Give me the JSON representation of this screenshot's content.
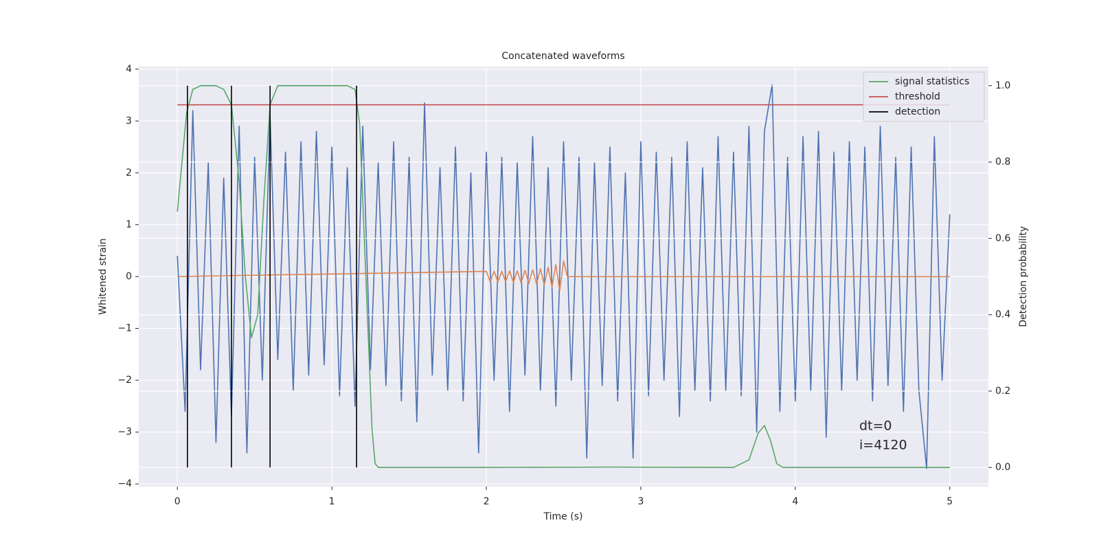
{
  "chart_data": {
    "type": "line",
    "title": "Concatenated waveforms",
    "xlabel": "Time (s)",
    "ylabel": "Whitened strain",
    "y2label": "Detection probability",
    "xlim": [
      -0.25,
      5.25
    ],
    "ylim": [
      -4.05,
      4.05
    ],
    "y2lim": [
      -0.05,
      1.05
    ],
    "xticks": [
      0,
      1,
      2,
      3,
      4,
      5
    ],
    "yticks": [
      {
        "value": -4,
        "label": "−4"
      },
      {
        "value": -3,
        "label": "−3"
      },
      {
        "value": -2,
        "label": "−2"
      },
      {
        "value": -1,
        "label": "−1"
      },
      0,
      1,
      2,
      3,
      4
    ],
    "y2ticks": [
      {
        "value": 0,
        "label": "0.0"
      },
      0.2,
      0.4,
      0.6,
      0.8,
      {
        "value": 1,
        "label": "1.0"
      }
    ],
    "grid": true,
    "legend": "upper right",
    "annotations": [
      "dt=0",
      "i=4120"
    ],
    "series": [
      {
        "color": "#4c72b0",
        "axis": "y",
        "x": [
          0,
          0.05,
          0.1,
          0.15,
          0.2,
          0.25,
          0.3,
          0.35,
          0.4,
          0.45,
          0.5,
          0.55,
          0.6,
          0.65,
          0.7,
          0.75,
          0.8,
          0.85,
          0.9,
          0.95,
          1,
          1.05,
          1.1,
          1.15,
          1.2,
          1.25,
          1.3,
          1.35,
          1.4,
          1.45,
          1.5,
          1.55,
          1.6,
          1.65,
          1.7,
          1.75,
          1.8,
          1.85,
          1.9,
          1.95,
          2,
          2.05,
          2.1,
          2.15,
          2.2,
          2.25,
          2.3,
          2.35,
          2.4,
          2.45,
          2.5,
          2.55,
          2.6,
          2.65,
          2.7,
          2.75,
          2.8,
          2.85,
          2.9,
          2.95,
          3,
          3.05,
          3.1,
          3.15,
          3.2,
          3.25,
          3.3,
          3.35,
          3.4,
          3.45,
          3.5,
          3.55,
          3.6,
          3.65,
          3.7,
          3.75,
          3.8,
          3.85,
          3.9,
          3.95,
          4,
          4.05,
          4.1,
          4.15,
          4.2,
          4.25,
          4.3,
          4.35,
          4.4,
          4.45,
          4.5,
          4.55,
          4.6,
          4.65,
          4.7,
          4.75,
          4.8,
          4.85,
          4.9,
          4.95,
          5
        ],
        "values": [
          0.4,
          -2.6,
          3.2,
          -1.8,
          2.2,
          -3.2,
          1.9,
          -2.7,
          2.9,
          -3.4,
          2.3,
          -2.0,
          3.1,
          -1.6,
          2.4,
          -2.2,
          2.6,
          -1.9,
          2.8,
          -1.7,
          2.5,
          -2.3,
          2.1,
          -2.5,
          2.9,
          -1.8,
          2.2,
          -2.1,
          2.6,
          -2.4,
          2.3,
          -2.8,
          3.35,
          -1.9,
          2.1,
          -2.2,
          2.5,
          -2.4,
          2.0,
          -3.4,
          2.4,
          -2.0,
          2.3,
          -2.6,
          2.2,
          -1.9,
          2.7,
          -2.2,
          2.1,
          -2.5,
          2.6,
          -2.0,
          2.3,
          -3.5,
          2.2,
          -2.1,
          2.5,
          -2.4,
          2.0,
          -3.5,
          2.6,
          -2.3,
          2.4,
          -2.0,
          2.3,
          -2.7,
          2.6,
          -2.2,
          2.1,
          -2.4,
          2.7,
          -2.2,
          2.4,
          -2.3,
          2.9,
          -3.0,
          2.8,
          3.7,
          -2.6,
          2.3,
          -2.4,
          2.7,
          -2.2,
          2.8,
          -3.1,
          2.4,
          -2.2,
          2.6,
          -2.0,
          2.5,
          -2.4,
          2.9,
          -2.1,
          2.3,
          -2.6,
          2.5,
          -2.2,
          -3.7,
          2.7,
          -2.0,
          1.2
        ]
      },
      {
        "color": "#dd8452",
        "axis": "y",
        "x": [
          0,
          2,
          2.025,
          2.05,
          2.075,
          2.1,
          2.125,
          2.15,
          2.175,
          2.2,
          2.225,
          2.25,
          2.275,
          2.3,
          2.325,
          2.35,
          2.375,
          2.4,
          2.425,
          2.45,
          2.475,
          2.5,
          2.525,
          5
        ],
        "values": [
          0,
          0.1,
          -0.1,
          0.1,
          -0.1,
          0.1,
          -0.1,
          0.11,
          -0.11,
          0.11,
          -0.12,
          0.12,
          -0.13,
          0.13,
          -0.14,
          0.15,
          -0.16,
          0.18,
          -0.2,
          0.23,
          -0.27,
          0.3,
          0,
          0
        ]
      },
      {
        "name": "signal statistics",
        "color": "#55a868",
        "axis": "y2",
        "x": [
          0,
          0.03,
          0.06,
          0.1,
          0.15,
          0.25,
          0.3,
          0.35,
          0.4,
          0.44,
          0.48,
          0.52,
          0.56,
          0.6,
          0.65,
          0.8,
          1.1,
          1.15,
          1.18,
          1.21,
          1.24,
          1.26,
          1.28,
          1.3,
          2,
          2.8,
          3.6,
          3.7,
          3.76,
          3.8,
          3.84,
          3.88,
          3.92,
          5
        ],
        "values": [
          0.67,
          0.8,
          0.93,
          0.99,
          1,
          1,
          0.99,
          0.95,
          0.75,
          0.5,
          0.34,
          0.4,
          0.7,
          0.95,
          1,
          1,
          1,
          0.99,
          0.9,
          0.6,
          0.3,
          0.1,
          0.01,
          0,
          0,
          0.001,
          0,
          0.02,
          0.09,
          0.11,
          0.07,
          0.01,
          0,
          0
        ]
      },
      {
        "name": "threshold",
        "color": "#c44e52",
        "axis": "y2",
        "x": [
          0,
          5
        ],
        "values": [
          0.95,
          0.95
        ]
      }
    ],
    "detections": {
      "name": "detection",
      "color": "#000000",
      "x": [
        0.065,
        0.35,
        0.6,
        1.16
      ],
      "y2range": [
        0,
        1
      ]
    }
  }
}
